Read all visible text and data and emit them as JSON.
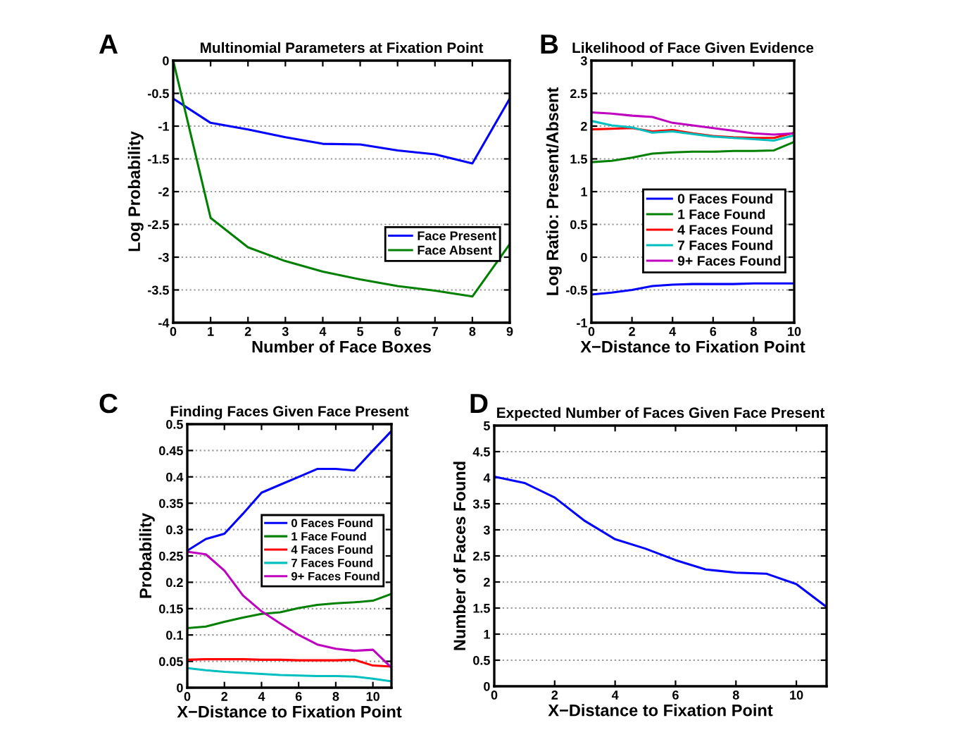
{
  "chart_data": [
    {
      "type": "line",
      "title": "Multinomial Parameters at Fixation Point",
      "xlabel": "Number of Face Boxes",
      "ylabel": "Log Probability",
      "annotations": [
        "A"
      ],
      "x": [
        0,
        1,
        2,
        3,
        4,
        5,
        6,
        7,
        8,
        9
      ],
      "series": [
        {
          "name": "Face Present",
          "color": "#0000ff",
          "values": [
            -0.58,
            -0.95,
            -1.05,
            -1.17,
            -1.27,
            -1.28,
            -1.37,
            -1.43,
            -1.57,
            -0.58
          ]
        },
        {
          "name": "Face Absent",
          "color": "#008000",
          "values": [
            0,
            -2.4,
            -2.85,
            -3.06,
            -3.22,
            -3.34,
            -3.44,
            -3.51,
            -3.6,
            -2.8
          ]
        }
      ],
      "xlim": [
        0,
        9
      ],
      "ylim": [
        -4,
        0
      ],
      "xticks": [
        0,
        1,
        2,
        3,
        4,
        5,
        6,
        7,
        8,
        9
      ],
      "yticks": [
        -4,
        -3.5,
        -3,
        -2.5,
        -2,
        -1.5,
        -1,
        -0.5,
        0
      ],
      "grid": "y",
      "legend": "right"
    },
    {
      "type": "line",
      "title": "Likelihood of Face Given Evidence",
      "xlabel": "X−Distance to Fixation Point",
      "ylabel": "Log Ratio: Present/Absent",
      "annotations": [
        "B"
      ],
      "x": [
        0,
        1,
        2,
        3,
        4,
        5,
        6,
        7,
        8,
        9,
        10
      ],
      "series": [
        {
          "name": "0 Faces Found",
          "color": "#0000ff",
          "values": [
            -0.57,
            -0.54,
            -0.5,
            -0.44,
            -0.42,
            -0.41,
            -0.41,
            -0.41,
            -0.4,
            -0.4,
            -0.4
          ]
        },
        {
          "name": "1 Face Found",
          "color": "#008000",
          "values": [
            1.45,
            1.47,
            1.52,
            1.58,
            1.6,
            1.61,
            1.61,
            1.62,
            1.62,
            1.63,
            1.76
          ]
        },
        {
          "name": "4 Faces Found",
          "color": "#ff0000",
          "values": [
            1.95,
            1.96,
            1.97,
            1.92,
            1.94,
            1.89,
            1.85,
            1.83,
            1.82,
            1.82,
            1.9
          ]
        },
        {
          "name": "7 Faces Found",
          "color": "#00bfbf",
          "values": [
            2.08,
            2.01,
            1.98,
            1.9,
            1.92,
            1.88,
            1.84,
            1.82,
            1.8,
            1.78,
            1.86
          ]
        },
        {
          "name": "9+ Faces Found",
          "color": "#bf00bf",
          "values": [
            2.21,
            2.19,
            2.16,
            2.14,
            2.05,
            2.01,
            1.97,
            1.93,
            1.89,
            1.87,
            1.89
          ]
        }
      ],
      "xlim": [
        0,
        10
      ],
      "ylim": [
        -1,
        3
      ],
      "xticks": [
        0,
        2,
        4,
        6,
        8,
        10
      ],
      "yticks": [
        -1,
        -0.5,
        0,
        0.5,
        1,
        1.5,
        2,
        2.5,
        3
      ],
      "grid": "y",
      "legend": "right"
    },
    {
      "type": "line",
      "title": "Finding Faces Given Face Present",
      "xlabel": "X−Distance to Fixation Point",
      "ylabel": "Probability",
      "annotations": [
        "C"
      ],
      "x": [
        0,
        1,
        2,
        3,
        4,
        5,
        6,
        7,
        8,
        9,
        10,
        11
      ],
      "series": [
        {
          "name": "0 Faces Found",
          "color": "#0000ff",
          "values": [
            0.26,
            0.282,
            0.292,
            0.33,
            0.37,
            0.385,
            0.4,
            0.415,
            0.415,
            0.412,
            0.45,
            0.487
          ]
        },
        {
          "name": "1 Face Found",
          "color": "#008000",
          "values": [
            0.113,
            0.116,
            0.125,
            0.133,
            0.14,
            0.143,
            0.151,
            0.157,
            0.16,
            0.162,
            0.165,
            0.178
          ]
        },
        {
          "name": "4 Faces Found",
          "color": "#ff0000",
          "values": [
            0.053,
            0.054,
            0.054,
            0.054,
            0.053,
            0.053,
            0.052,
            0.052,
            0.052,
            0.053,
            0.042,
            0.04
          ]
        },
        {
          "name": "7 Faces Found",
          "color": "#00bfbf",
          "values": [
            0.037,
            0.033,
            0.03,
            0.028,
            0.026,
            0.024,
            0.023,
            0.022,
            0.022,
            0.021,
            0.017,
            0.012
          ]
        },
        {
          "name": "9+ Faces Found",
          "color": "#bf00bf",
          "values": [
            0.258,
            0.253,
            0.222,
            0.175,
            0.145,
            0.122,
            0.1,
            0.082,
            0.074,
            0.07,
            0.072,
            0.038
          ]
        }
      ],
      "xlim": [
        0,
        11
      ],
      "ylim": [
        0,
        0.5
      ],
      "xticks": [
        0,
        2,
        4,
        6,
        8,
        10
      ],
      "yticks": [
        0,
        0.05,
        0.1,
        0.15,
        0.2,
        0.25,
        0.3,
        0.35,
        0.4,
        0.45,
        0.5
      ],
      "grid": "y",
      "legend": "right"
    },
    {
      "type": "line",
      "title": "Expected Number of Faces Given Face Present",
      "xlabel": "X−Distance to Fixation Point",
      "ylabel": "Number of Faces Found",
      "annotations": [
        "D"
      ],
      "x": [
        0,
        1,
        2,
        3,
        4,
        5,
        6,
        7,
        8,
        9,
        10,
        11
      ],
      "series": [
        {
          "color": "#0000ff",
          "values": [
            4.02,
            3.9,
            3.62,
            3.17,
            2.82,
            2.64,
            2.42,
            2.24,
            2.18,
            2.16,
            1.96,
            1.52
          ]
        }
      ],
      "xlim": [
        0,
        11
      ],
      "ylim": [
        0,
        5
      ],
      "xticks": [
        0,
        2,
        4,
        6,
        8,
        10
      ],
      "yticks": [
        0,
        0.5,
        1,
        1.5,
        2,
        2.5,
        3,
        3.5,
        4,
        4.5,
        5
      ],
      "grid": "y"
    }
  ]
}
